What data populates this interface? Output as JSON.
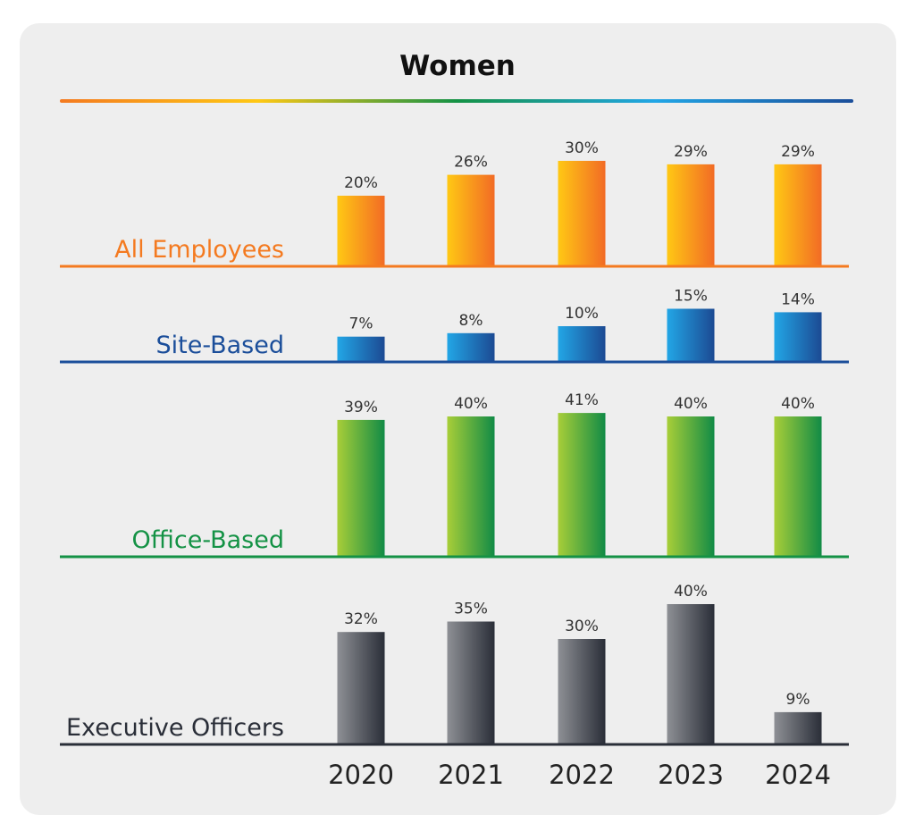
{
  "chart_data": {
    "type": "bar",
    "title": "Women",
    "categories": [
      "2020",
      "2021",
      "2022",
      "2023",
      "2024"
    ],
    "series": [
      {
        "name": "All Employees",
        "values": [
          20,
          26,
          30,
          29,
          29
        ],
        "labels": [
          "20%",
          "26%",
          "30%",
          "29%",
          "29%"
        ],
        "color": "#F47A20",
        "gradient": [
          "#FFC814",
          "#F26B25"
        ]
      },
      {
        "name": "Site-Based",
        "values": [
          7,
          8,
          10,
          15,
          14
        ],
        "labels": [
          "7%",
          "8%",
          "10%",
          "15%",
          "14%"
        ],
        "color": "#1B4E9A",
        "gradient": [
          "#22A6E6",
          "#1C4A93"
        ]
      },
      {
        "name": "Office-Based",
        "values": [
          39,
          40,
          41,
          40,
          40
        ],
        "labels": [
          "39%",
          "40%",
          "41%",
          "40%",
          "40%"
        ],
        "color": "#149245",
        "gradient": [
          "#A8CE38",
          "#118B46"
        ]
      },
      {
        "name": "Executive Officers",
        "values": [
          32,
          35,
          30,
          40,
          9
        ],
        "labels": [
          "32%",
          "35%",
          "30%",
          "40%",
          "9%"
        ],
        "color": "#2A2E38",
        "gradient": [
          "#8E9095",
          "#2A2E38"
        ]
      }
    ],
    "title_rule_gradient": [
      "#F47A20",
      "#FFC814",
      "#149245",
      "#22A6E6",
      "#1B4E9A"
    ],
    "grid": false,
    "legend": "row labels at left of each band"
  }
}
